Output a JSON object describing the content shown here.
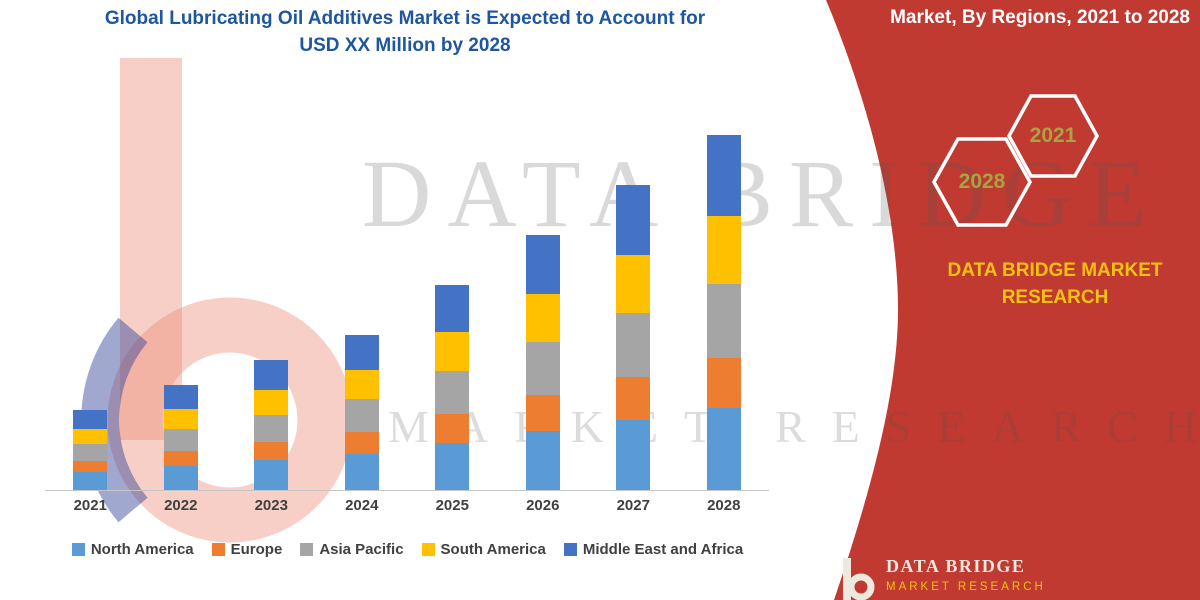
{
  "header": {
    "title_line1": "Global Lubricating Oil Additives Market is Expected to Account for",
    "title_line2": "USD XX Million by 2028"
  },
  "side_panel": {
    "heading": "Market, By Regions, 2021 to 2028",
    "hexagon_years": [
      "2028",
      "2021"
    ],
    "brand_line1": "DATA BRIDGE MARKET",
    "brand_line2": "RESEARCH"
  },
  "watermark": {
    "line1": "DATA BRIDGE",
    "line2": "MARKET RESEARCH"
  },
  "footer_logo": {
    "name": "DATA BRIDGE",
    "tagline": "MARKET RESEARCH"
  },
  "theme": {
    "red": "#C13A31",
    "yellow": "#F3C211",
    "title_blue": "#1E56A0",
    "hexagon_text": "#A8A441",
    "axis_text": "#404040"
  },
  "chart_data": {
    "type": "bar",
    "stacked": true,
    "title": "Global Lubricating Oil Additives Market is Expected to Account for USD XX Million by 2028",
    "note": "No value axis is shown in the figure; values are relative estimates (USD XX Million) read from bar heights.",
    "categories": [
      "2021",
      "2022",
      "2023",
      "2024",
      "2025",
      "2026",
      "2027",
      "2028"
    ],
    "series": [
      {
        "name": "North America",
        "color": "#5B9BD5",
        "values": [
          18,
          24,
          30,
          36,
          47,
          59,
          70,
          82
        ]
      },
      {
        "name": "Europe",
        "color": "#ED7D31",
        "values": [
          11,
          15,
          18,
          22,
          29,
          36,
          43,
          50
        ]
      },
      {
        "name": "Asia Pacific",
        "color": "#A5A5A5",
        "values": [
          17,
          22,
          27,
          33,
          43,
          53,
          64,
          74
        ]
      },
      {
        "name": "South America",
        "color": "#FFC000",
        "values": [
          15,
          20,
          25,
          29,
          39,
          48,
          58,
          68
        ]
      },
      {
        "name": "Middle East and Africa",
        "color": "#4472C4",
        "values": [
          19,
          24,
          30,
          35,
          47,
          59,
          70,
          81
        ]
      }
    ],
    "totals": [
      80,
      105,
      130,
      155,
      205,
      255,
      305,
      355
    ],
    "xlabel": "",
    "ylabel": "",
    "grid": false,
    "legend_position": "bottom"
  }
}
